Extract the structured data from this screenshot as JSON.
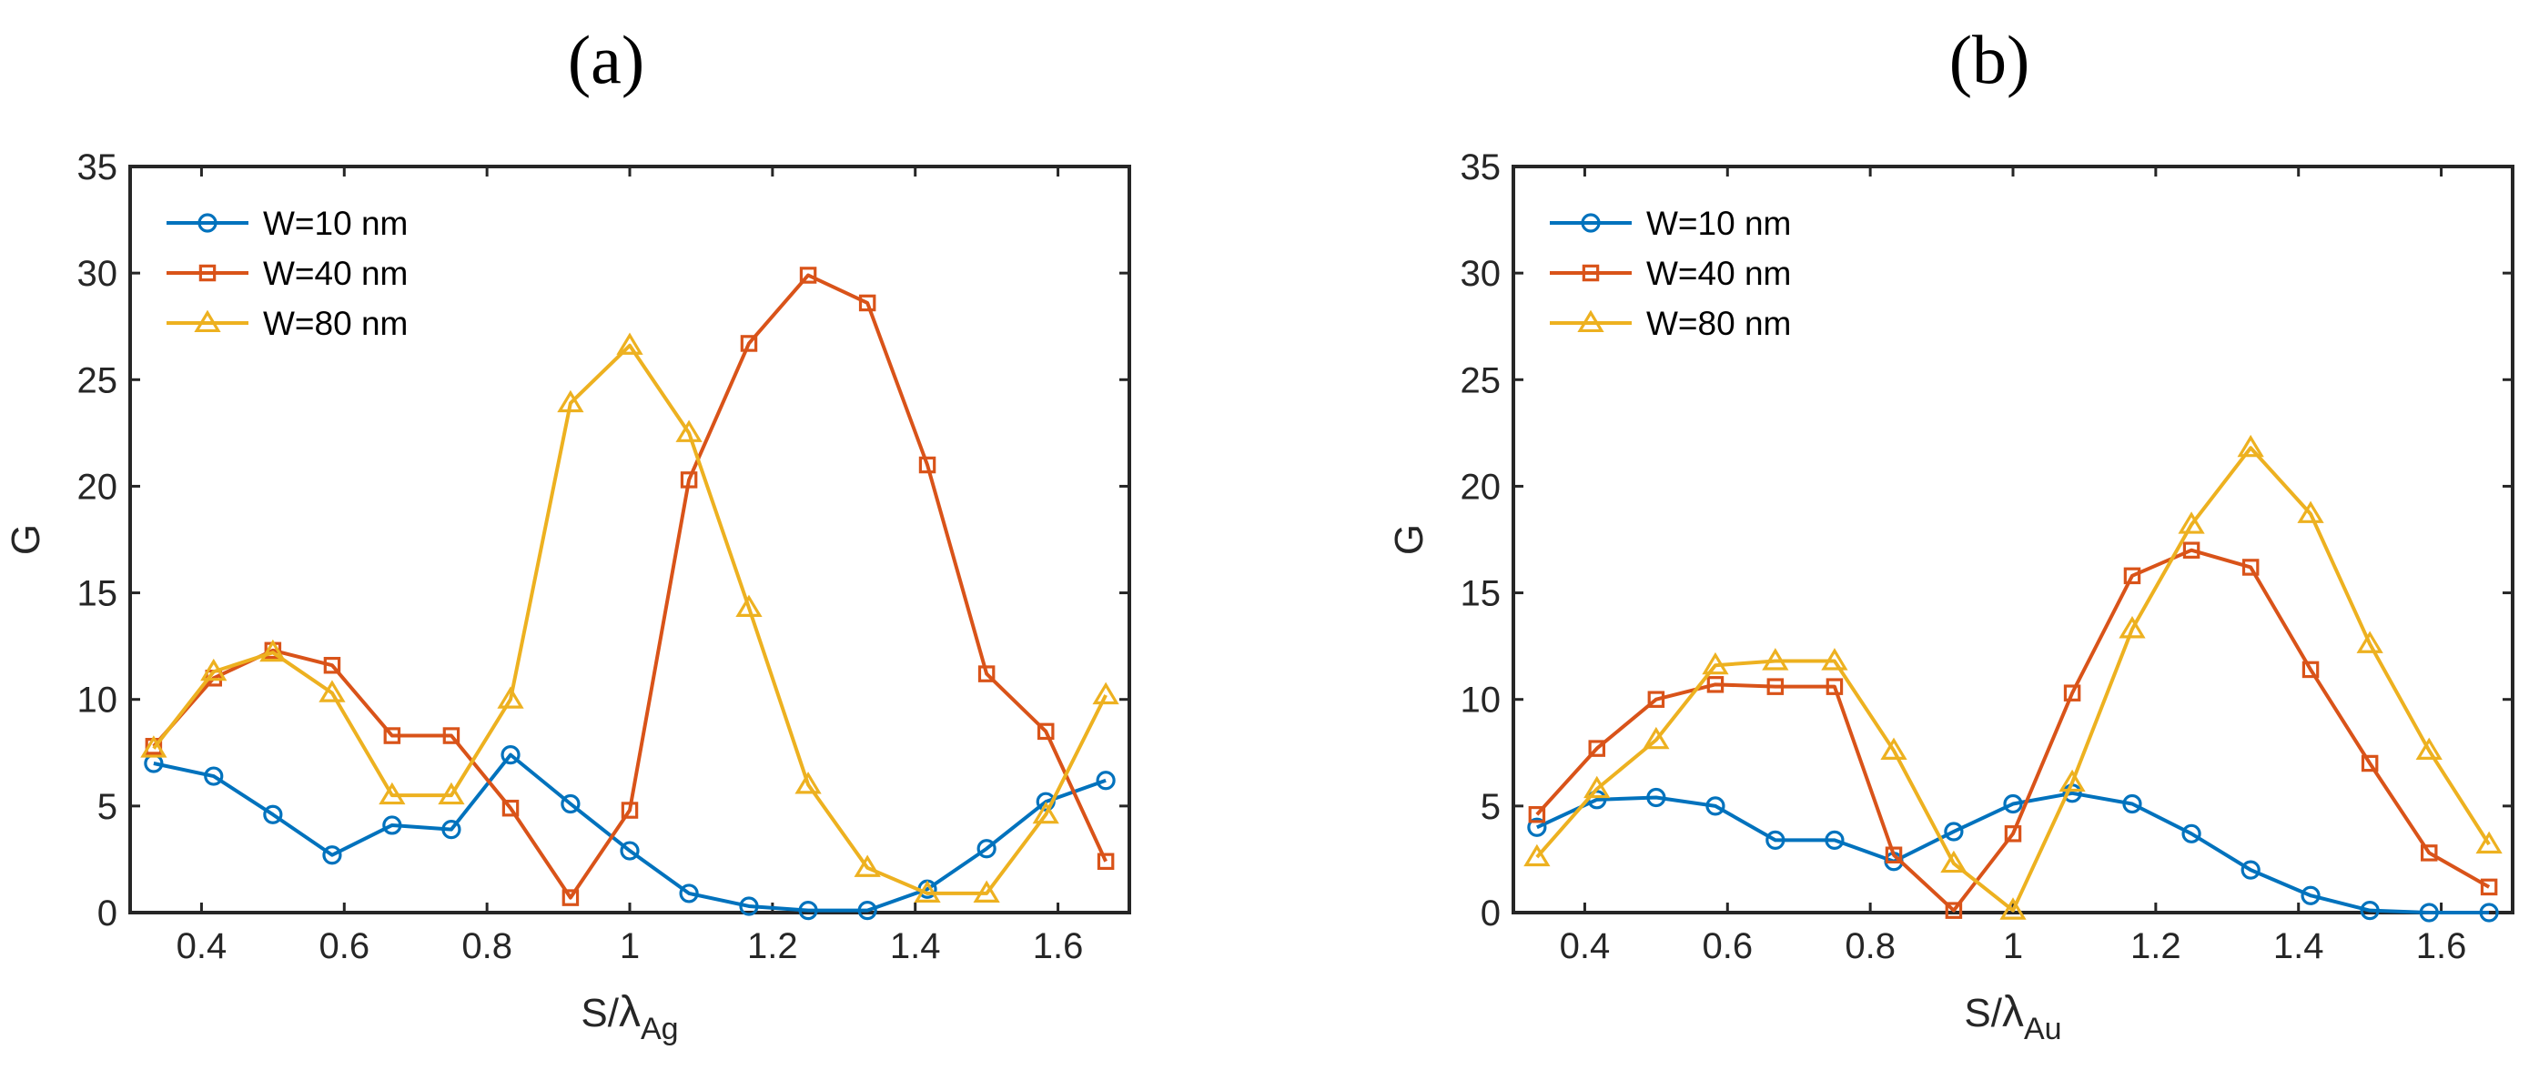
{
  "chart_data": [
    {
      "panel": "(a)",
      "type": "line",
      "xlabel": {
        "main": "S/",
        "greek": "λ",
        "sub": "Ag"
      },
      "ylabel": "G",
      "xlim": [
        0.3,
        1.7
      ],
      "ylim": [
        0,
        35
      ],
      "xticks": [
        0.4,
        0.6,
        0.8,
        1,
        1.2,
        1.4,
        1.6
      ],
      "xtick_labels": [
        "0.4",
        "0.6",
        "0.8",
        "1",
        "1.2",
        "1.4",
        "1.6"
      ],
      "yticks": [
        0,
        5,
        10,
        15,
        20,
        25,
        30,
        35
      ],
      "ytick_labels": [
        "0",
        "5",
        "10",
        "15",
        "20",
        "25",
        "30",
        "35"
      ],
      "legend_position": "top-left",
      "x": [
        0.333,
        0.417,
        0.5,
        0.583,
        0.667,
        0.75,
        0.833,
        0.917,
        1.0,
        1.083,
        1.167,
        1.25,
        1.333,
        1.417,
        1.5,
        1.583,
        1.667
      ],
      "series": [
        {
          "name": "W=10 nm",
          "marker": "circle",
          "color": "#0072BD",
          "values": [
            7.0,
            6.4,
            4.6,
            2.7,
            4.1,
            3.9,
            7.4,
            5.1,
            2.9,
            0.9,
            0.3,
            0.1,
            0.1,
            1.1,
            3.0,
            5.2,
            6.2
          ]
        },
        {
          "name": "W=40 nm",
          "marker": "square",
          "color": "#D95319",
          "values": [
            7.8,
            11.0,
            12.3,
            11.6,
            8.3,
            8.3,
            4.9,
            0.7,
            4.8,
            20.3,
            26.7,
            29.9,
            28.6,
            21.0,
            11.2,
            8.5,
            2.4
          ]
        },
        {
          "name": "W=80 nm",
          "marker": "triangle",
          "color": "#EDB120",
          "values": [
            7.7,
            11.3,
            12.2,
            10.3,
            5.5,
            5.5,
            10.0,
            23.9,
            26.6,
            22.5,
            14.3,
            6.0,
            2.1,
            0.9,
            0.9,
            4.6,
            10.2
          ]
        }
      ]
    },
    {
      "panel": "(b)",
      "type": "line",
      "xlabel": {
        "main": "S/",
        "greek": "λ",
        "sub": "Au"
      },
      "ylabel": "G",
      "xlim": [
        0.3,
        1.7
      ],
      "ylim": [
        0,
        35
      ],
      "xticks": [
        0.4,
        0.6,
        0.8,
        1,
        1.2,
        1.4,
        1.6
      ],
      "xtick_labels": [
        "0.4",
        "0.6",
        "0.8",
        "1",
        "1.2",
        "1.4",
        "1.6"
      ],
      "yticks": [
        0,
        5,
        10,
        15,
        20,
        25,
        30,
        35
      ],
      "ytick_labels": [
        "0",
        "5",
        "10",
        "15",
        "20",
        "25",
        "30",
        "35"
      ],
      "legend_position": "top-left",
      "x": [
        0.333,
        0.417,
        0.5,
        0.583,
        0.667,
        0.75,
        0.833,
        0.917,
        1.0,
        1.083,
        1.167,
        1.25,
        1.333,
        1.417,
        1.5,
        1.583,
        1.667
      ],
      "series": [
        {
          "name": "W=10 nm",
          "marker": "circle",
          "color": "#0072BD",
          "values": [
            4.0,
            5.3,
            5.4,
            5.0,
            3.4,
            3.4,
            2.4,
            3.8,
            5.1,
            5.6,
            5.1,
            3.7,
            2.0,
            0.8,
            0.1,
            0.0,
            0.0
          ]
        },
        {
          "name": "W=40 nm",
          "marker": "square",
          "color": "#D95319",
          "values": [
            4.6,
            7.7,
            10.0,
            10.7,
            10.6,
            10.6,
            2.7,
            0.1,
            3.7,
            10.3,
            15.8,
            17.0,
            16.2,
            11.4,
            7.0,
            2.8,
            1.2
          ]
        },
        {
          "name": "W=80 nm",
          "marker": "triangle",
          "color": "#EDB120",
          "values": [
            2.6,
            5.8,
            8.1,
            11.6,
            11.8,
            11.8,
            7.6,
            2.3,
            0.1,
            6.1,
            13.3,
            18.2,
            21.8,
            18.7,
            12.6,
            7.6,
            3.2
          ]
        }
      ]
    }
  ]
}
